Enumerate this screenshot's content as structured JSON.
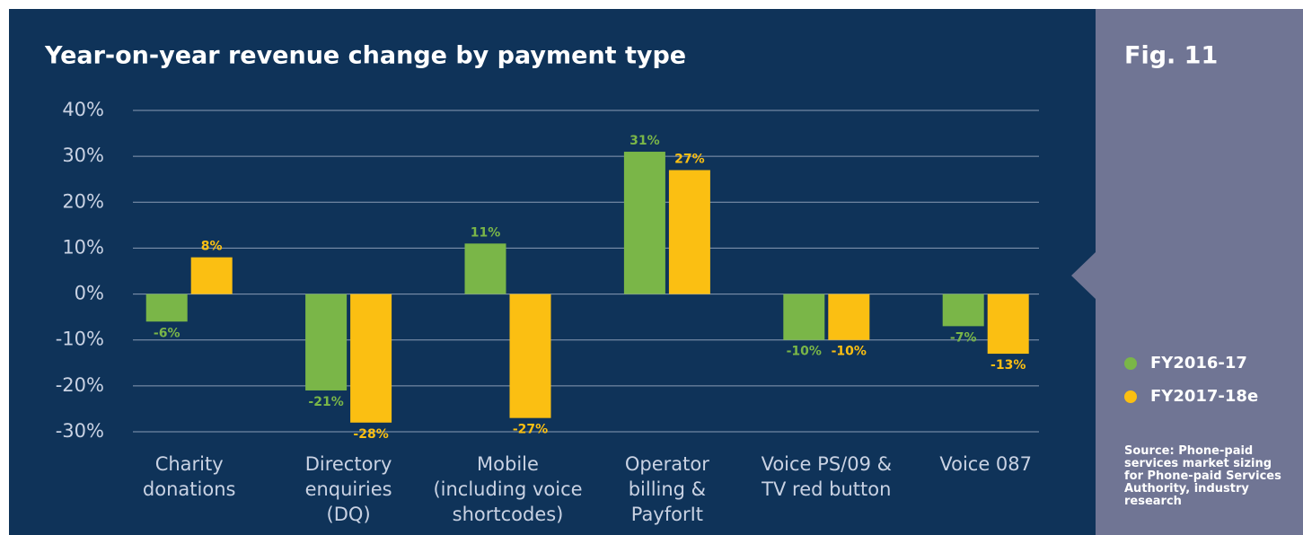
{
  "chart_data": {
    "type": "bar",
    "title": "Year-on-year revenue change by payment type",
    "figure_label": "Fig. 11",
    "source": "Source: Phone-paid\nservices market sizing\nfor Phone-paid Services\nAuthority, industry\nresearch",
    "categories": [
      "Charity\ndonations",
      "Directory\nenquiries\n(DQ)",
      "Mobile\n(including voice\nshortcodes)",
      "Operator\nbilling &\nPayforIt",
      "Voice PS/09 &\nTV red button",
      "Voice 087"
    ],
    "series": [
      {
        "name": "FY2016-17",
        "color": "#7ab648",
        "values": [
          -6,
          -21,
          11,
          31,
          -10,
          -7
        ],
        "value_labels": [
          "-6%",
          "-21%",
          "11%",
          "31%",
          "-10%",
          "-7%"
        ]
      },
      {
        "name": "FY2017-18e",
        "color": "#fbbf12",
        "values": [
          8,
          -28,
          -27,
          27,
          -10,
          -13
        ],
        "value_labels": [
          "8%",
          "-28%",
          "-27%",
          "27%",
          "-10%",
          "-13%"
        ]
      }
    ],
    "ylim": [
      -30,
      40
    ],
    "yticks": [
      {
        "value": -30,
        "label": "-30%"
      },
      {
        "value": -20,
        "label": "-20%"
      },
      {
        "value": -10,
        "label": "-10%"
      },
      {
        "value": 0,
        "label": "0%"
      },
      {
        "value": 10,
        "label": "10%"
      },
      {
        "value": 20,
        "label": "20%"
      },
      {
        "value": 30,
        "label": "30%"
      },
      {
        "value": 40,
        "label": "40%"
      }
    ],
    "grid": true
  }
}
